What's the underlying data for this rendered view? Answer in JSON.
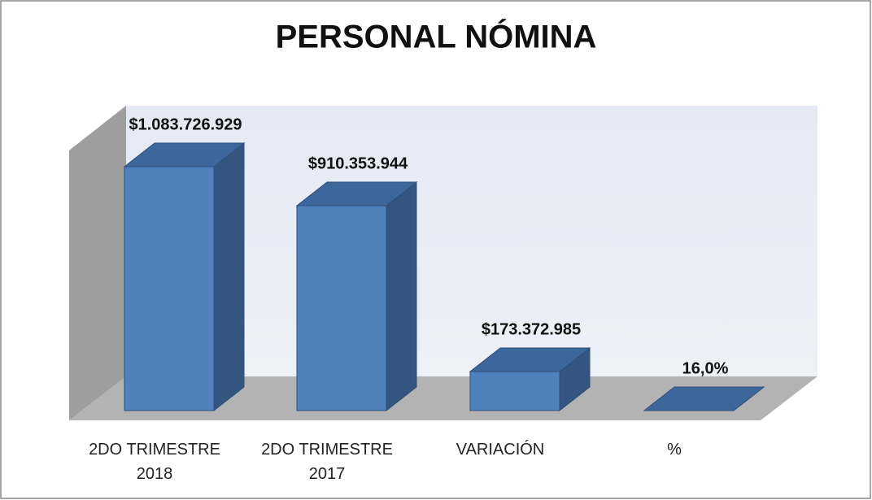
{
  "chart_data": {
    "type": "bar3d",
    "title": "PERSONAL NÓMINA",
    "categories": [
      "2DO TRIMESTRE 2018",
      "2DO TRIMESTRE 2017",
      "VARIACIÓN",
      "%"
    ],
    "values": [
      1083726929,
      910353944,
      173372985,
      16
    ],
    "value_labels": [
      "$1.083.726.929",
      "$910.353.944",
      "$173.372.985",
      "16,0%"
    ],
    "color": "#4f81bd"
  }
}
